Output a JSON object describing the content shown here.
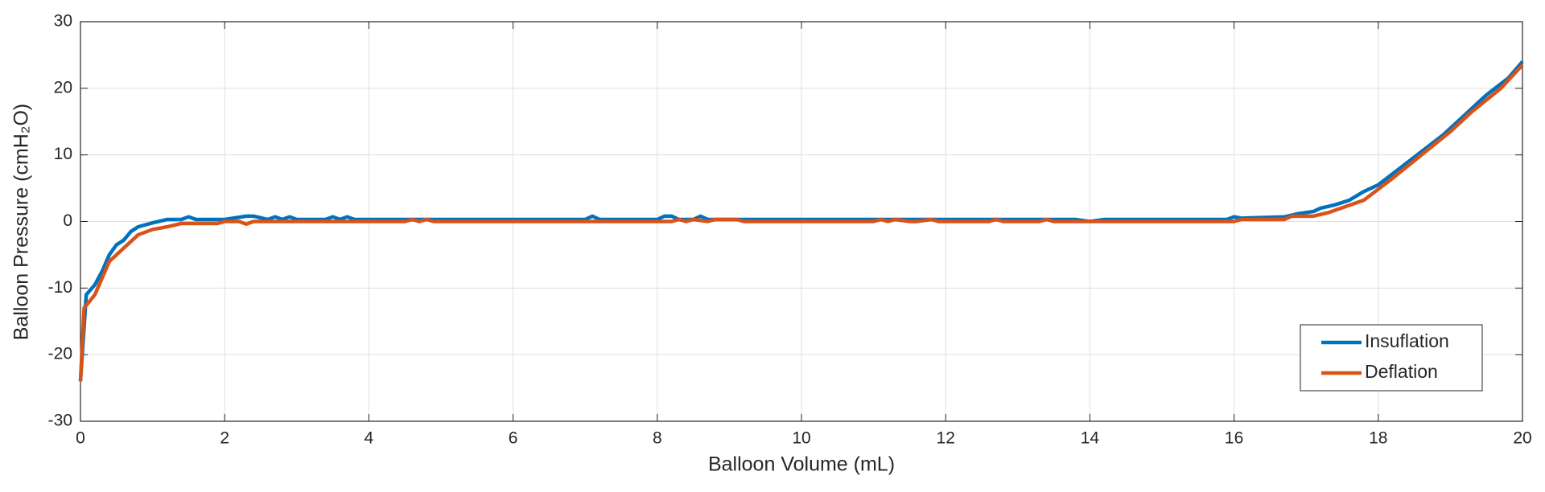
{
  "chart_data": {
    "type": "line",
    "xlabel": "Balloon Volume (mL)",
    "ylabel": "Balloon Pressure (cmH₂O)",
    "xlim": [
      0,
      20
    ],
    "xticks": [
      0,
      2,
      4,
      6,
      8,
      10,
      12,
      14,
      16,
      18,
      20
    ],
    "ylim": [
      -30,
      30
    ],
    "yticks": [
      -30,
      -20,
      -10,
      0,
      10,
      20,
      30
    ],
    "grid": true,
    "legend_position": "lower-right",
    "series": [
      {
        "name": "Insuflation",
        "color": "#0072BD",
        "x": [
          0,
          0.08,
          0.2,
          0.3,
          0.4,
          0.5,
          0.6,
          0.7,
          0.8,
          1.0,
          1.2,
          1.4,
          1.5,
          1.6,
          2.0,
          2.3,
          2.4,
          2.6,
          2.7,
          2.8,
          2.9,
          3.0,
          3.4,
          3.5,
          3.6,
          3.7,
          3.8,
          7.0,
          7.1,
          7.2,
          8.0,
          8.1,
          8.2,
          8.3,
          8.5,
          8.6,
          8.7,
          13.8,
          14.0,
          14.2,
          15.9,
          16.0,
          16.1,
          16.7,
          16.9,
          17.1,
          17.2,
          17.4,
          17.6,
          17.8,
          18.0,
          18.3,
          18.6,
          18.9,
          19.2,
          19.5,
          19.8,
          20.0
        ],
        "values": [
          -24,
          -11,
          -9.5,
          -7.5,
          -5,
          -3.5,
          -2.8,
          -1.5,
          -0.8,
          -0.2,
          0.3,
          0.3,
          0.7,
          0.3,
          0.3,
          0.8,
          0.8,
          0.3,
          0.7,
          0.3,
          0.7,
          0.3,
          0.3,
          0.7,
          0.3,
          0.7,
          0.3,
          0.3,
          0.8,
          0.3,
          0.3,
          0.8,
          0.8,
          0.3,
          0.3,
          0.8,
          0.3,
          0.3,
          0,
          0.3,
          0.3,
          0.7,
          0.5,
          0.7,
          1.2,
          1.5,
          2,
          2.5,
          3.2,
          4.5,
          5.5,
          8,
          10.5,
          13,
          16,
          19,
          21.5,
          24
        ]
      },
      {
        "name": "Deflation",
        "color": "#D95319",
        "x": [
          0,
          0.05,
          0.2,
          0.4,
          0.6,
          0.8,
          1.0,
          1.2,
          1.4,
          1.9,
          2.0,
          2.2,
          2.3,
          2.4,
          4.5,
          4.6,
          4.7,
          4.8,
          4.9,
          8.2,
          8.3,
          8.4,
          8.5,
          8.7,
          8.8,
          9.1,
          9.2,
          11.0,
          11.1,
          11.2,
          11.3,
          11.5,
          11.6,
          11.8,
          11.9,
          12.6,
          12.7,
          12.8,
          13.3,
          13.4,
          13.5,
          16.0,
          16.1,
          16.7,
          16.8,
          17.1,
          17.3,
          17.8,
          18.2,
          18.6,
          19.0,
          19.3,
          19.7,
          20.0
        ],
        "values": [
          -24,
          -13,
          -11,
          -6,
          -4,
          -2,
          -1.2,
          -0.8,
          -0.3,
          -0.3,
          0,
          0,
          -0.4,
          0,
          0,
          0.3,
          0,
          0.3,
          0,
          0,
          0.3,
          0,
          0.3,
          0,
          0.3,
          0.3,
          0,
          0,
          0.3,
          0,
          0.3,
          0,
          0,
          0.3,
          0,
          0,
          0.3,
          0,
          0,
          0.3,
          0,
          0,
          0.3,
          0.3,
          0.8,
          0.8,
          1.3,
          3.2,
          6.5,
          10,
          13.5,
          16.5,
          20,
          23.5
        ]
      }
    ]
  }
}
